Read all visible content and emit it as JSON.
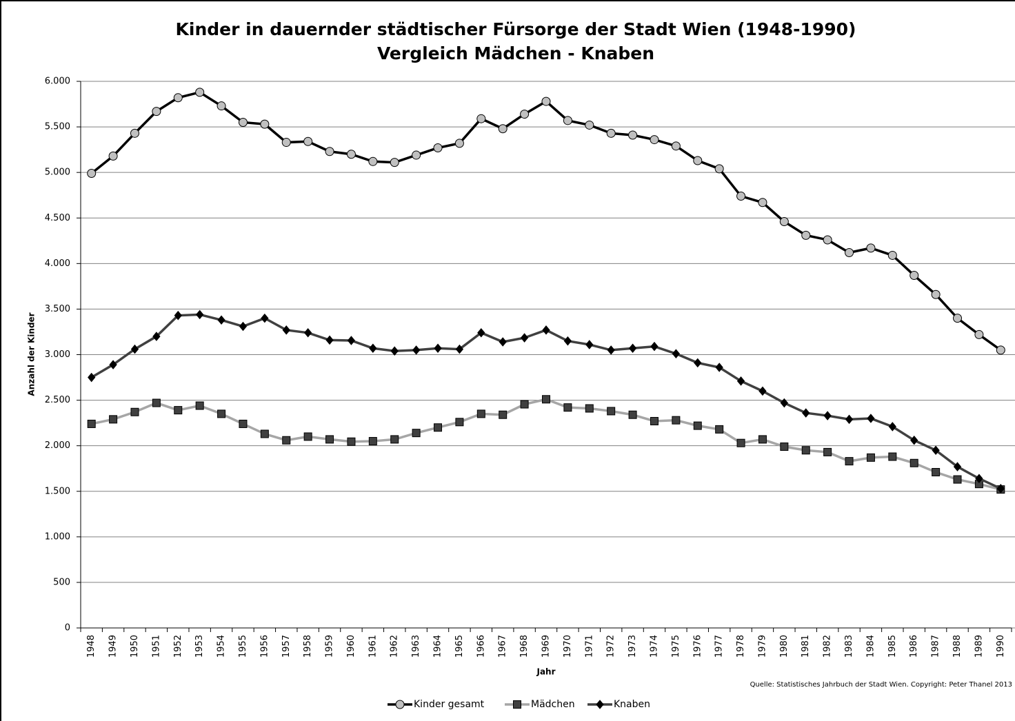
{
  "chart_data": {
    "type": "line",
    "title": "Kinder in dauernder städtischer Fürsorge der Stadt Wien (1948-1990)",
    "subtitle": "Vergleich Mädchen - Knaben",
    "x_label": "Jahr",
    "y_label": "Anzahl der Kinder",
    "source": "Quelle: Statistisches Jahrbuch der Stadt Wien. Copyright: Peter Thanel 2013",
    "categories": [
      "1948",
      "1949",
      "1950",
      "1951",
      "1952",
      "1953",
      "1954",
      "1955",
      "1956",
      "1957",
      "1958",
      "1959",
      "1960",
      "1961",
      "1962",
      "1963",
      "1964",
      "1965",
      "1966",
      "1967",
      "1968",
      "1969",
      "1970",
      "1971",
      "1972",
      "1973",
      "1974",
      "1975",
      "1976",
      "1977",
      "1978",
      "1979",
      "1980",
      "1981",
      "1982",
      "1983",
      "1984",
      "1985",
      "1986",
      "1987",
      "1988",
      "1989",
      "1990"
    ],
    "series": [
      {
        "name": "Kinder gesamt",
        "color": "#000000",
        "marker": "circle",
        "marker_color": "#c0c0c0",
        "values": [
          4990,
          5180,
          5430,
          5670,
          5820,
          5880,
          5730,
          5550,
          5530,
          5330,
          5340,
          5230,
          5200,
          5120,
          5110,
          5190,
          5270,
          5320,
          5590,
          5480,
          5640,
          5780,
          5570,
          5520,
          5430,
          5410,
          5360,
          5290,
          5130,
          5040,
          4740,
          4670,
          4460,
          4310,
          4260,
          4120,
          4170,
          4090,
          3870,
          3660,
          3400,
          3220,
          3050
        ]
      },
      {
        "name": "Mädchen",
        "color": "#a6a6a6",
        "marker": "square",
        "marker_color": "#404040",
        "values": [
          2240,
          2290,
          2370,
          2470,
          2390,
          2440,
          2350,
          2240,
          2130,
          2060,
          2100,
          2070,
          2045,
          2050,
          2070,
          2140,
          2200,
          2260,
          2350,
          2340,
          2455,
          2510,
          2420,
          2410,
          2380,
          2340,
          2270,
          2280,
          2220,
          2180,
          2030,
          2070,
          1990,
          1950,
          1930,
          1830,
          1870,
          1880,
          1810,
          1710,
          1630,
          1580,
          1520
        ]
      },
      {
        "name": "Knaben",
        "color": "#404040",
        "marker": "diamond",
        "marker_color": "#000000",
        "values": [
          2750,
          2890,
          3060,
          3200,
          3430,
          3440,
          3380,
          3310,
          3400,
          3270,
          3240,
          3160,
          3155,
          3070,
          3040,
          3050,
          3070,
          3060,
          3240,
          3140,
          3185,
          3270,
          3150,
          3110,
          3050,
          3070,
          3090,
          3010,
          2910,
          2860,
          2710,
          2600,
          2470,
          2360,
          2330,
          2290,
          2300,
          2210,
          2060,
          1950,
          1770,
          1640,
          1530
        ]
      }
    ],
    "ylim": [
      0,
      6000
    ],
    "yticks": [
      0,
      500,
      {
        "value": 1000,
        "label": "1.000"
      },
      {
        "value": 1500,
        "label": "1.500"
      },
      {
        "value": 2000,
        "label": "2.000"
      },
      {
        "value": 2500,
        "label": "2.500"
      },
      {
        "value": 3000,
        "label": "3.000"
      },
      {
        "value": 3500,
        "label": "3.500"
      },
      {
        "value": 4000,
        "label": "4.000"
      },
      {
        "value": 4500,
        "label": "4.500"
      },
      {
        "value": 5000,
        "label": "5.000"
      },
      {
        "value": 5500,
        "label": "5.500"
      },
      {
        "value": 6000,
        "label": "6.000"
      }
    ],
    "grid": true,
    "legend": "bottom"
  }
}
